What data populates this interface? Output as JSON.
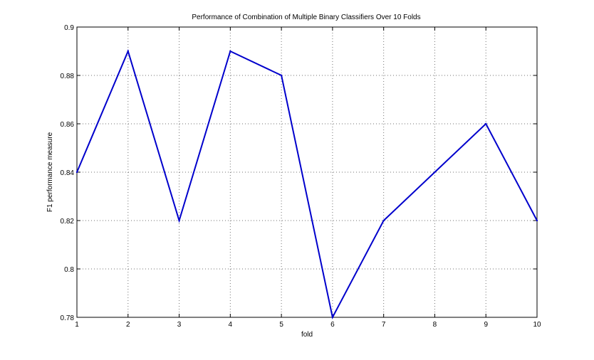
{
  "chart_data": {
    "type": "line",
    "title": "Performance of Combination of Multiple Binary Classifiers Over 10 Folds",
    "xlabel": "fold",
    "ylabel": "F1 performance measure",
    "xlim": [
      1,
      10
    ],
    "ylim": [
      0.78,
      0.9
    ],
    "xticks": [
      "1",
      "2",
      "3",
      "4",
      "5",
      "6",
      "7",
      "8",
      "9",
      "10"
    ],
    "yticks": [
      "0.78",
      "0.8",
      "0.82",
      "0.84",
      "0.86",
      "0.88",
      "0.9"
    ],
    "grid": true,
    "x": [
      1,
      2,
      3,
      4,
      5,
      6,
      7,
      8,
      9,
      10
    ],
    "series": [
      {
        "values": [
          0.84,
          0.89,
          0.82,
          0.89,
          0.88,
          0.78,
          0.82,
          0.84,
          0.86,
          0.82
        ],
        "color": "#0000cc"
      }
    ]
  }
}
